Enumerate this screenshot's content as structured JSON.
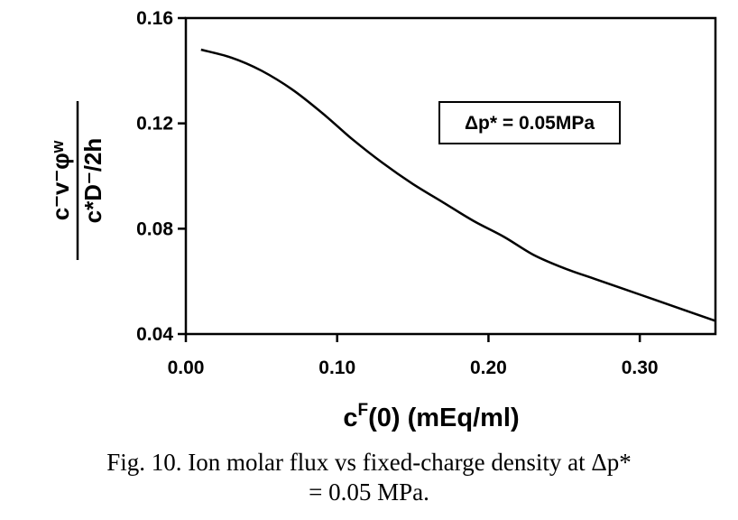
{
  "chart_data": {
    "type": "line",
    "xlabel_main": "c",
    "xlabel_sup": "F",
    "xlabel_rest": "(0) (mEq/ml)",
    "ylabel_num": "c⁻v⁻φʷ",
    "ylabel_den": "c*D⁻/2h",
    "annotation": "Δp* = 0.05MPa",
    "xlim": [
      0.0,
      0.35
    ],
    "ylim": [
      0.04,
      0.16
    ],
    "x_ticks": [
      "0.00",
      "0.10",
      "0.20",
      "0.30"
    ],
    "x_tick_values": [
      0.0,
      0.1,
      0.2,
      0.3
    ],
    "y_ticks": [
      "0.04",
      "0.08",
      "0.12",
      "0.16"
    ],
    "y_tick_values": [
      0.04,
      0.08,
      0.12,
      0.16
    ],
    "grid": false,
    "series": [
      {
        "x": [
          0.01,
          0.03,
          0.05,
          0.07,
          0.09,
          0.11,
          0.13,
          0.15,
          0.17,
          0.19,
          0.21,
          0.23,
          0.25,
          0.27,
          0.29,
          0.31,
          0.33,
          0.35
        ],
        "y": [
          0.148,
          0.145,
          0.14,
          0.133,
          0.124,
          0.114,
          0.105,
          0.097,
          0.09,
          0.083,
          0.077,
          0.07,
          0.065,
          0.061,
          0.057,
          0.053,
          0.049,
          0.045
        ]
      }
    ]
  },
  "caption": {
    "line1": "Fig. 10. Ion molar flux vs fixed-charge density at Δp*",
    "line2": "= 0.05 MPa."
  }
}
